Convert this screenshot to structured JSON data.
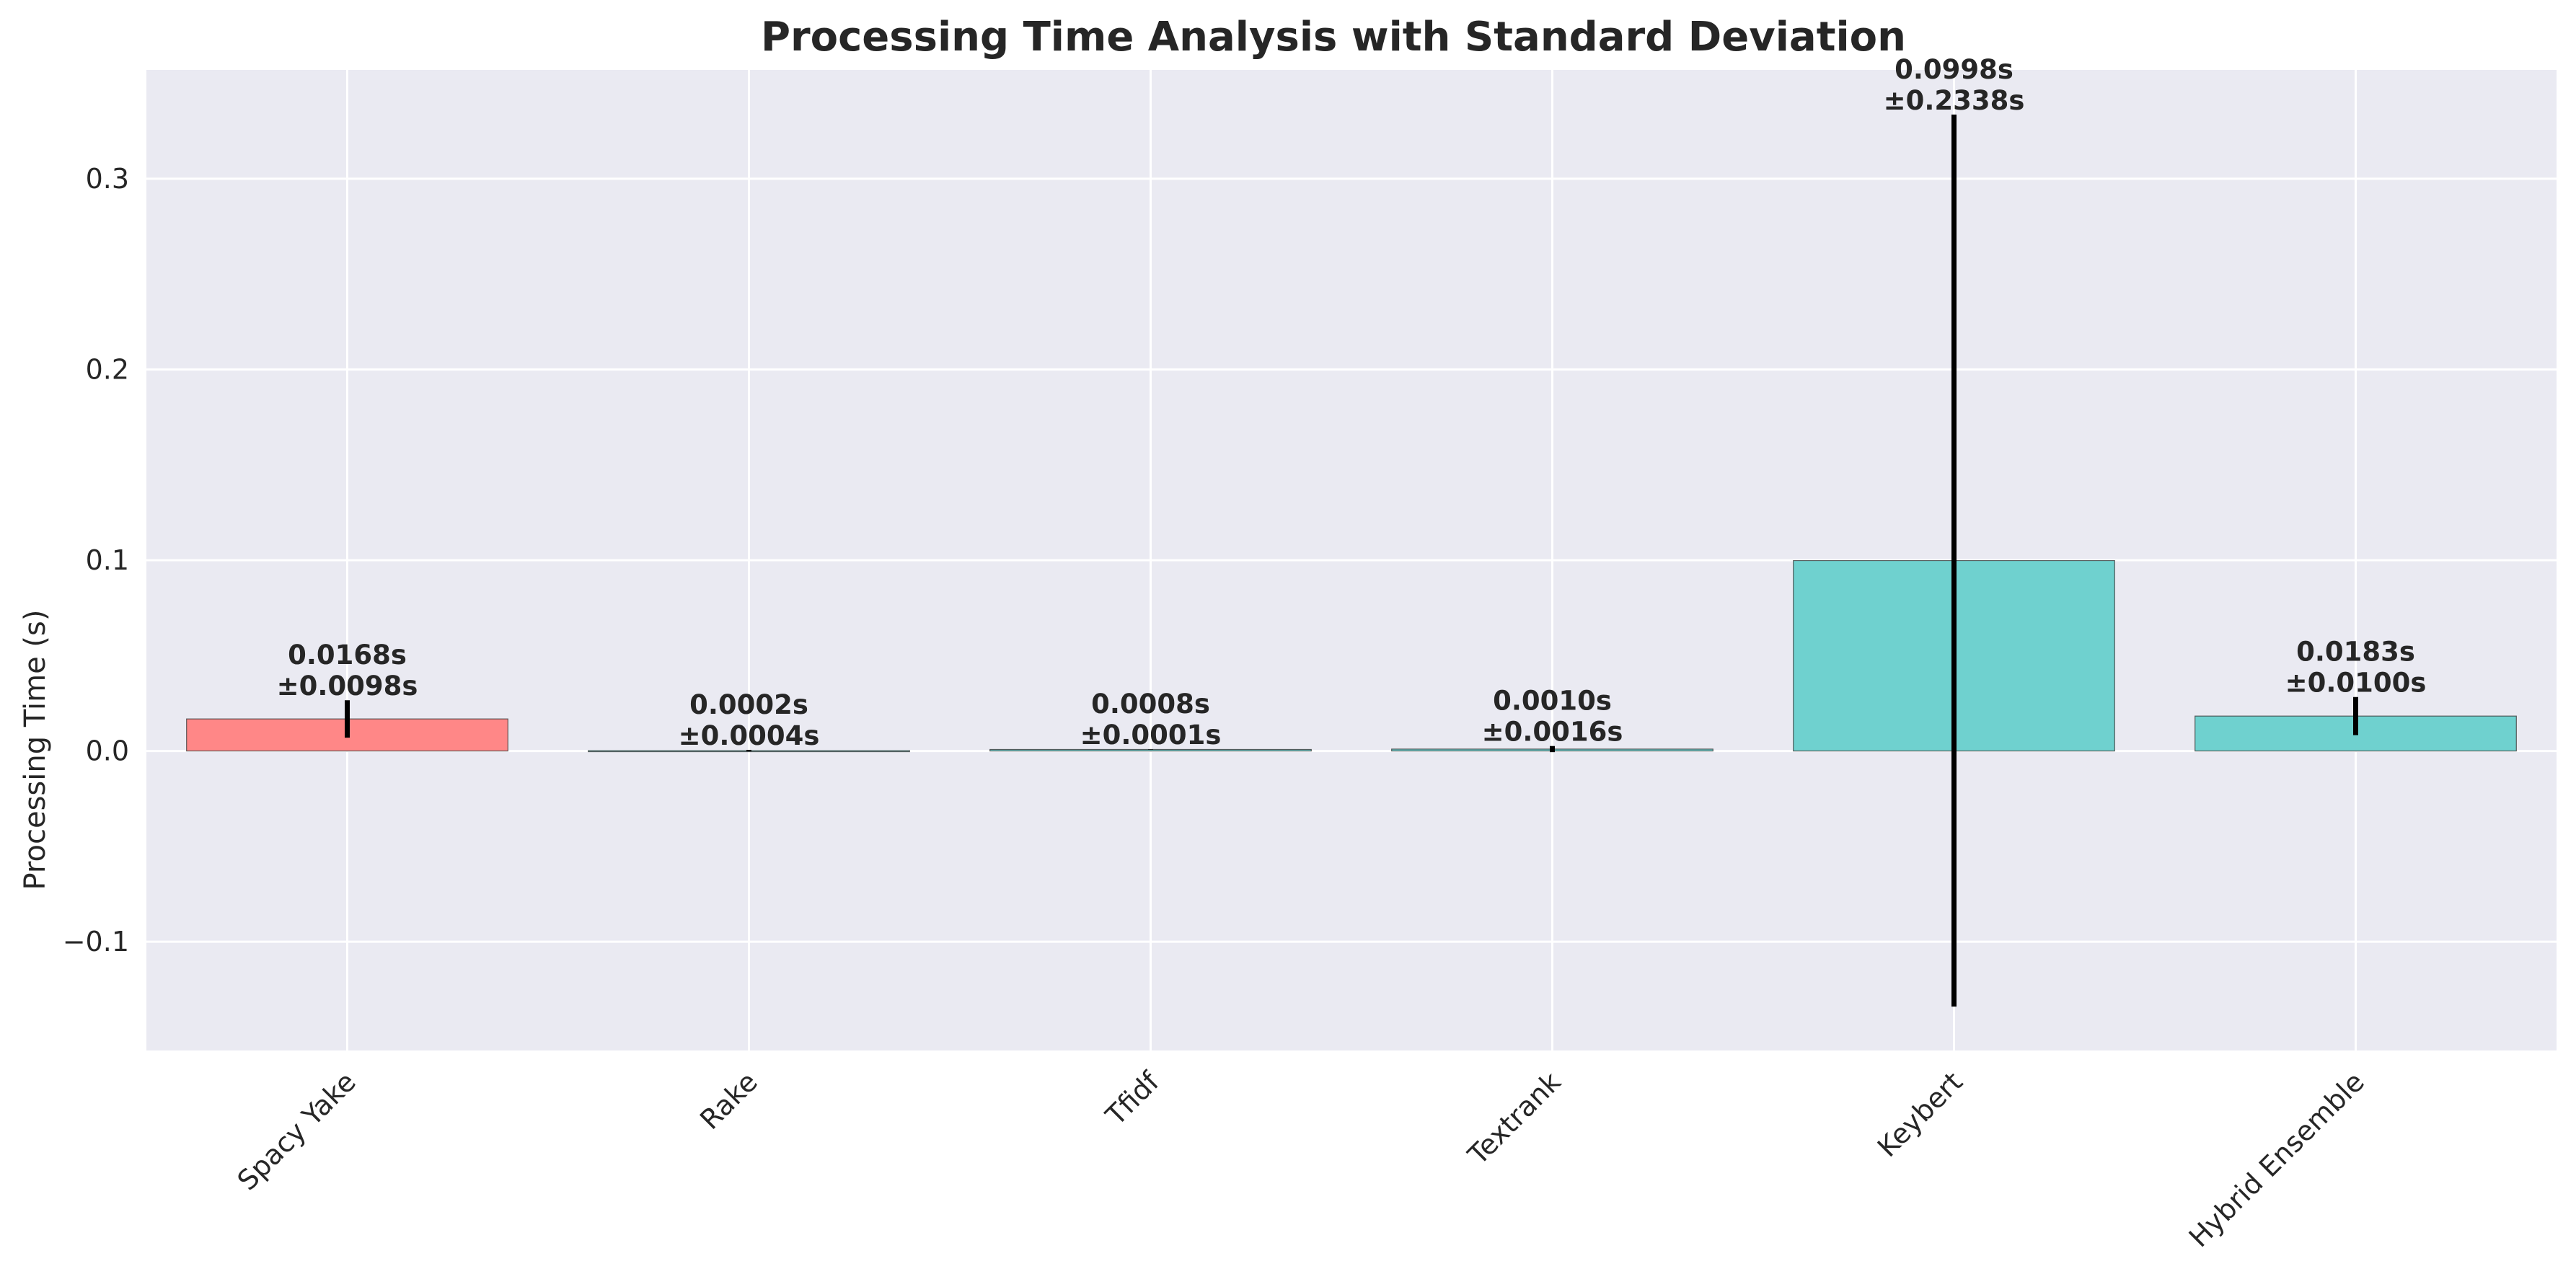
{
  "chart_data": {
    "type": "bar",
    "title": "Processing Time Analysis with Standard Deviation",
    "xlabel": "",
    "ylabel": "Processing Time (s)",
    "ylim": [
      -0.157,
      0.357
    ],
    "grid": true,
    "yticks": [
      -0.1,
      0.0,
      0.1,
      0.2,
      0.3
    ],
    "ytick_labels": [
      "−0.1",
      "0.0",
      "0.1",
      "0.2",
      "0.3"
    ],
    "categories": [
      "Spacy Yake",
      "Rake",
      "Tfidf",
      "Textrank",
      "Keybert",
      "Hybrid Ensemble"
    ],
    "values": [
      0.0168,
      0.0002,
      0.0008,
      0.001,
      0.0998,
      0.0183
    ],
    "errors": [
      0.0098,
      0.0004,
      0.0001,
      0.0016,
      0.2338,
      0.01
    ],
    "labels": [
      [
        "0.0168s",
        "±0.0098s"
      ],
      [
        "0.0002s",
        "±0.0004s"
      ],
      [
        "0.0008s",
        "±0.0001s"
      ],
      [
        "0.0010s",
        "±0.0016s"
      ],
      [
        "0.0998s",
        "±0.2338s"
      ],
      [
        "0.0183s",
        "±0.0100s"
      ]
    ],
    "colors": [
      "#ff8787",
      "#6fd1cf",
      "#6fd1cf",
      "#6fd1cf",
      "#6fd1cf",
      "#6fd1cf"
    ],
    "background_color": "#eaeaf2"
  }
}
